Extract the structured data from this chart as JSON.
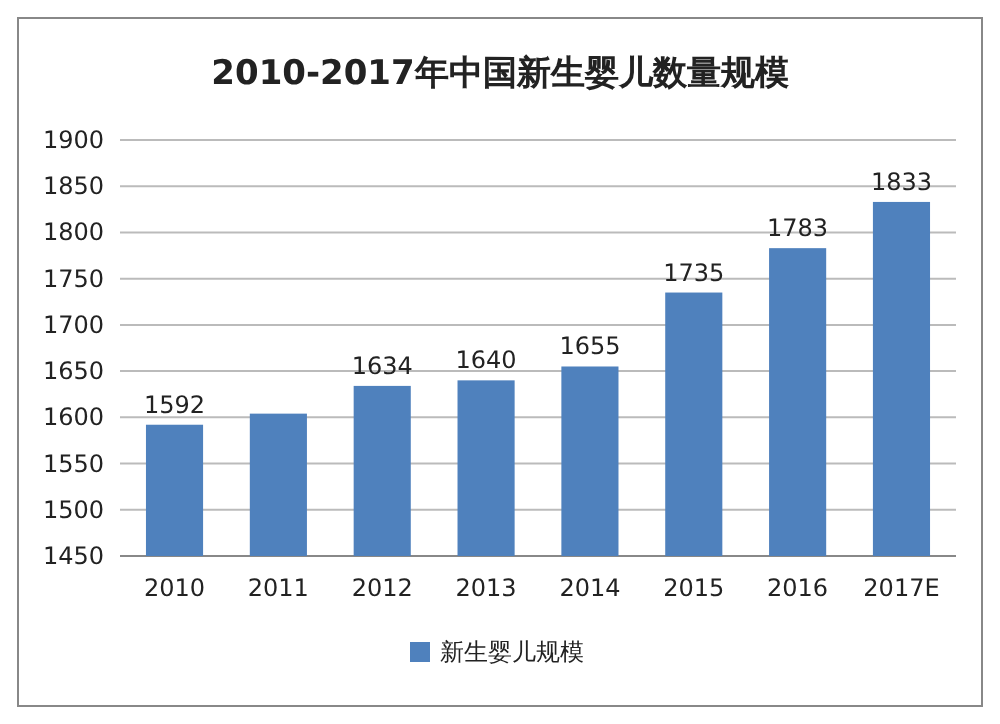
{
  "chart_data": {
    "type": "bar",
    "title": "2010-2017年中国新生婴儿数量规模",
    "categories": [
      "2010",
      "2011",
      "2012",
      "2013",
      "2014",
      "2015",
      "2016",
      "2017E"
    ],
    "series": [
      {
        "name": "新生婴儿规模",
        "color": "#4f81bd",
        "values": [
          1592,
          1604,
          1634,
          1640,
          1655,
          1735,
          1783,
          1833
        ],
        "value_labels": [
          "1592",
          null,
          "1634",
          "1640",
          "1655",
          "1735",
          "1783",
          "1833"
        ]
      }
    ],
    "ylim": [
      1450,
      1900
    ],
    "yticks": [
      1450,
      1500,
      1550,
      1600,
      1650,
      1700,
      1750,
      1800,
      1850,
      1900
    ],
    "grid": "y",
    "legend": "bottom"
  }
}
